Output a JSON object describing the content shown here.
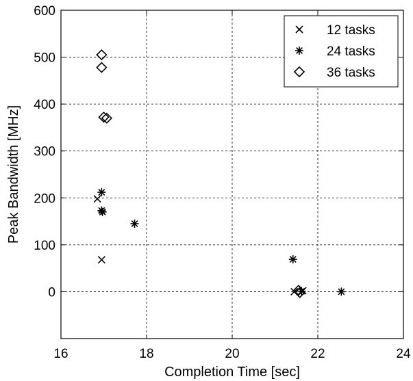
{
  "chart_data": {
    "type": "scatter",
    "title": "",
    "xlabel": "Completion Time [sec]",
    "ylabel": "Peak Bandwidth [MHz]",
    "xlim": [
      16,
      24
    ],
    "ylim": [
      -100,
      600
    ],
    "xticks": [
      16,
      18,
      20,
      22,
      24
    ],
    "yticks": [
      0,
      100,
      200,
      300,
      400,
      500,
      600
    ],
    "xtick_labels": [
      "16",
      "18",
      "20",
      "22",
      "24"
    ],
    "ytick_labels": [
      "0",
      "100",
      "200",
      "300",
      "400",
      "500",
      "600"
    ],
    "grid": true,
    "legend_position": "top-right",
    "series": [
      {
        "name": "12 tasks",
        "marker": "x-icon",
        "points": [
          [
            16.85,
            198
          ],
          [
            16.95,
            68
          ],
          [
            21.45,
            0
          ],
          [
            21.65,
            2
          ]
        ]
      },
      {
        "name": "24 tasks",
        "marker": "asterisk-icon",
        "points": [
          [
            16.95,
            212
          ],
          [
            16.95,
            173
          ],
          [
            16.97,
            170
          ],
          [
            17.72,
            145
          ],
          [
            21.42,
            69
          ],
          [
            21.62,
            1
          ],
          [
            22.55,
            0
          ]
        ]
      },
      {
        "name": "36 tasks",
        "marker": "diamond-icon",
        "points": [
          [
            16.95,
            505
          ],
          [
            16.95,
            478
          ],
          [
            17.0,
            372
          ],
          [
            17.07,
            370
          ],
          [
            21.55,
            3
          ],
          [
            21.58,
            -2
          ]
        ]
      }
    ]
  }
}
